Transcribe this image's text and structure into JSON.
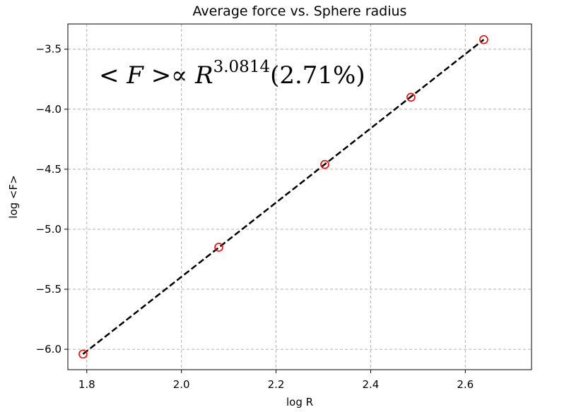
{
  "chart_data": {
    "type": "scatter",
    "title": "Average force vs. Sphere radius",
    "xlabel": "log R",
    "ylabel": "log <F>",
    "xlim": [
      1.76,
      2.74
    ],
    "ylim": [
      -6.17,
      -3.29
    ],
    "xticks": [
      1.8,
      2.0,
      2.2,
      2.4,
      2.6
    ],
    "yticks": [
      -3.5,
      -4.0,
      -4.5,
      -5.0,
      -5.5,
      -6.0
    ],
    "xtick_labels": [
      "1.8",
      "2.0",
      "2.2",
      "2.4",
      "2.6"
    ],
    "ytick_labels": [
      "−3.5",
      "−4.0",
      "−4.5",
      "−5.0",
      "−5.5",
      "−6.0"
    ],
    "grid": true,
    "series": [
      {
        "style": "markers",
        "marker": "open-circle",
        "color": "#ff0000",
        "x": [
          1.792,
          2.079,
          2.303,
          2.485,
          2.639
        ],
        "y": [
          -6.04,
          -5.15,
          -4.46,
          -3.9,
          -3.42
        ]
      },
      {
        "style": "dashed-line",
        "color": "#000000",
        "x": [
          1.792,
          2.639
        ],
        "y": [
          -6.04,
          -3.42
        ]
      }
    ],
    "annotation": {
      "lhs": "< F >∝ R",
      "exponent": "3.0814",
      "suffix": "(2.71%)"
    }
  }
}
